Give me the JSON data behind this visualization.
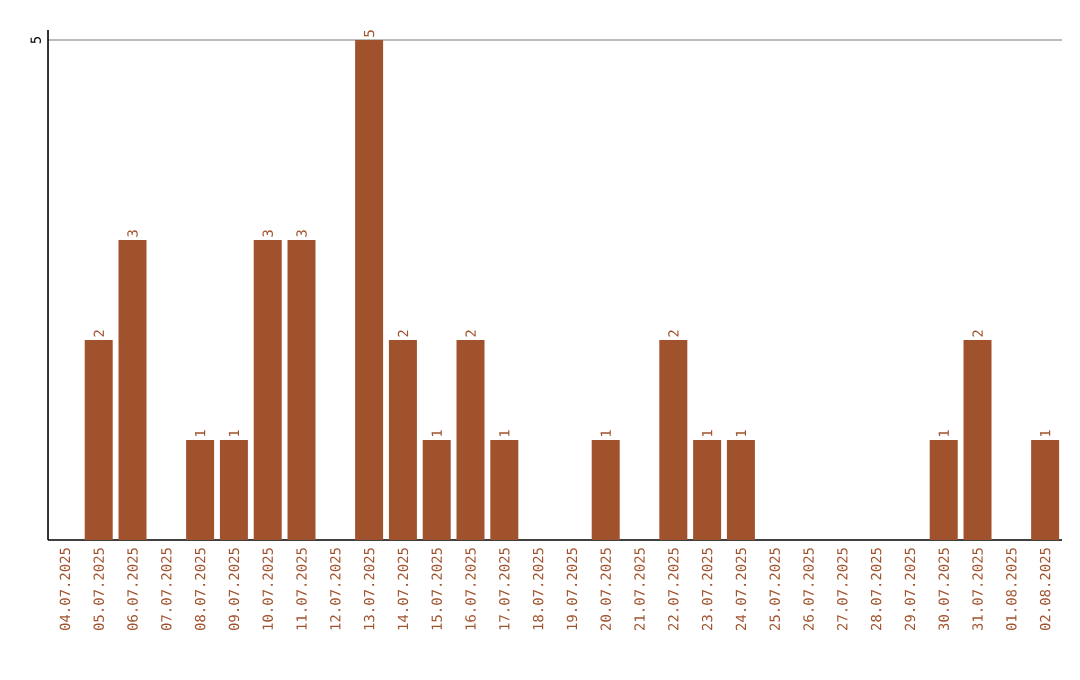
{
  "chart_data": {
    "type": "bar",
    "categories": [
      "04.07.2025",
      "05.07.2025",
      "06.07.2025",
      "07.07.2025",
      "08.07.2025",
      "09.07.2025",
      "10.07.2025",
      "11.07.2025",
      "12.07.2025",
      "13.07.2025",
      "14.07.2025",
      "15.07.2025",
      "16.07.2025",
      "17.07.2025",
      "18.07.2025",
      "19.07.2025",
      "20.07.2025",
      "21.07.2025",
      "22.07.2025",
      "23.07.2025",
      "24.07.2025",
      "25.07.2025",
      "26.07.2025",
      "27.07.2025",
      "28.07.2025",
      "29.07.2025",
      "30.07.2025",
      "31.07.2025",
      "01.08.2025",
      "02.08.2025"
    ],
    "values": [
      0,
      2,
      3,
      0,
      1,
      1,
      3,
      3,
      0,
      5,
      2,
      1,
      2,
      1,
      0,
      0,
      1,
      0,
      2,
      1,
      1,
      0,
      0,
      0,
      0,
      0,
      1,
      2,
      0,
      1
    ],
    "value_labels": [
      null,
      "2",
      "3",
      null,
      "1",
      "1",
      "3",
      "3",
      null,
      "5",
      "2",
      "1",
      "2",
      "1",
      null,
      null,
      "1",
      null,
      "2",
      "1",
      "1",
      null,
      null,
      null,
      null,
      null,
      "1",
      "2",
      null,
      "1"
    ],
    "color": "#a0522d",
    "ylim": [
      0,
      5.1
    ],
    "yticks": [
      5
    ],
    "grid": "y"
  }
}
